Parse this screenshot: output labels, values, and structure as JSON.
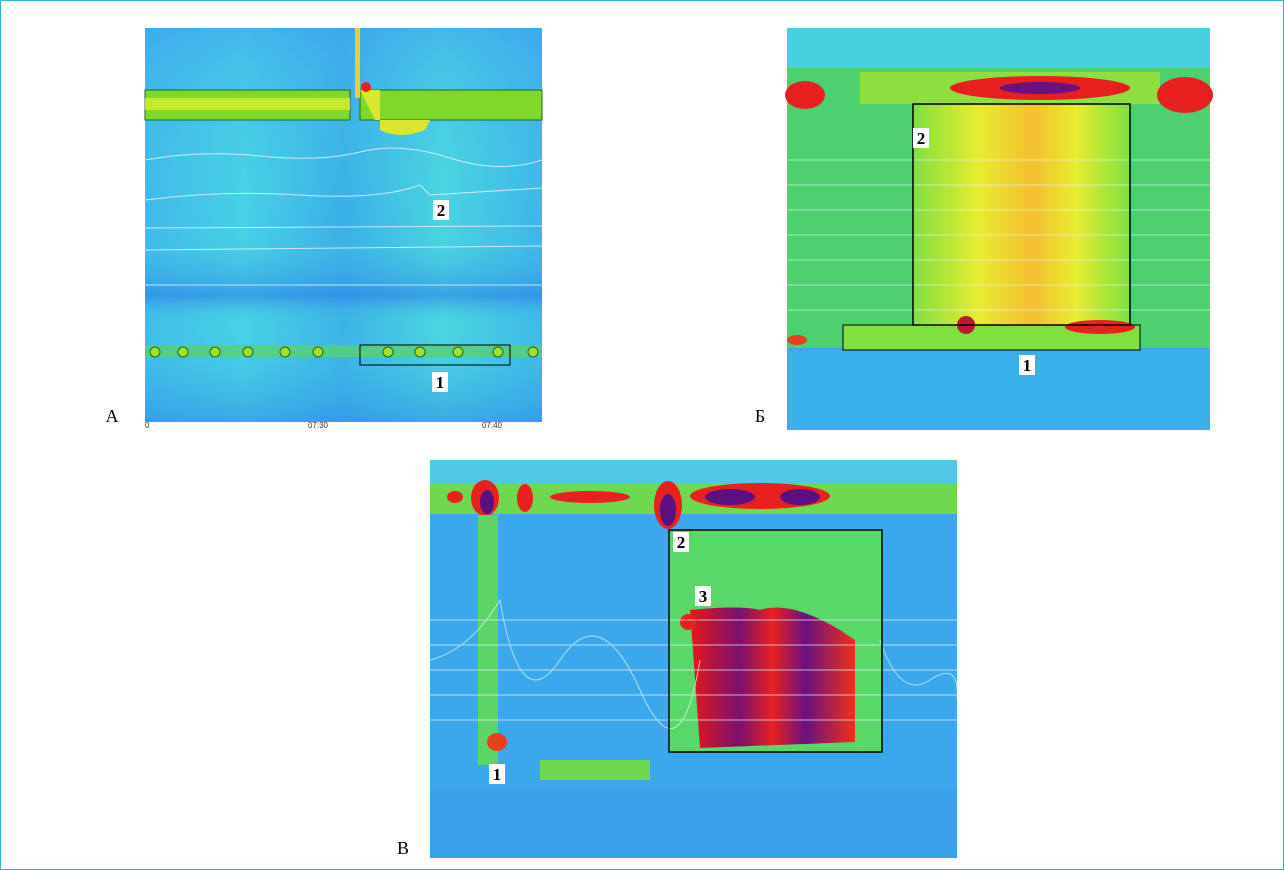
{
  "panels": [
    {
      "letter": "А",
      "labels": [
        "1",
        "2"
      ],
      "time_ticks": [
        "0",
        "07:30",
        "07:40"
      ]
    },
    {
      "letter": "Б",
      "labels": [
        "1",
        "2"
      ]
    },
    {
      "letter": "В",
      "labels": [
        "1",
        "2",
        "3"
      ]
    }
  ]
}
